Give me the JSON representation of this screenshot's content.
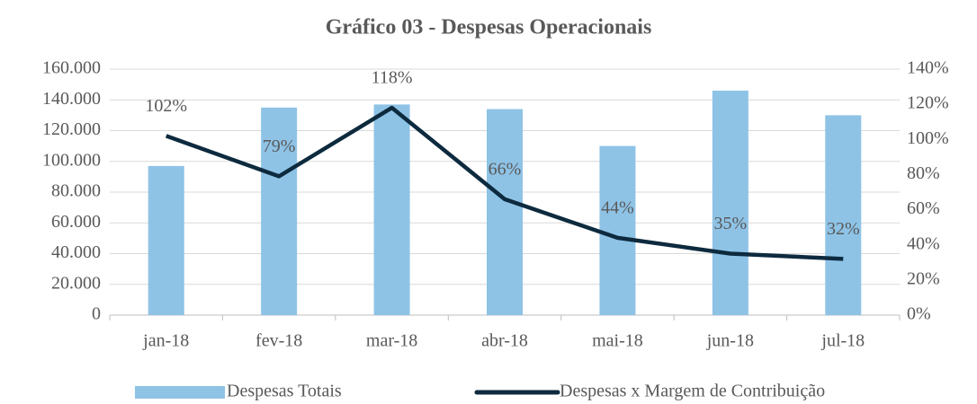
{
  "chart_data": {
    "type": "bar_line",
    "title": "Gráfico 03 - Despesas Operacionais",
    "categories": [
      "jan-18",
      "fev-18",
      "mar-18",
      "abr-18",
      "mai-18",
      "jun-18",
      "jul-18"
    ],
    "series": [
      {
        "name": "Despesas Totais",
        "type": "bar",
        "color": "#8ec3e6",
        "values": [
          97000,
          135000,
          137000,
          134000,
          110000,
          146000,
          130000
        ]
      },
      {
        "name": "Despesas x Margem de Contribuição",
        "type": "line",
        "axis": "y2",
        "color": "#0d2a3e",
        "values": [
          102,
          79,
          118,
          66,
          44,
          35,
          32
        ],
        "value_labels": [
          "102%",
          "79%",
          "118%",
          "66%",
          "44%",
          "35%",
          "32%"
        ]
      }
    ],
    "ylim": [
      0,
      160000
    ],
    "yticks": [
      0,
      {
        "value": 20000,
        "label": "20.000"
      },
      {
        "value": 40000,
        "label": "40.000"
      },
      {
        "value": 60000,
        "label": "60.000"
      },
      {
        "value": 80000,
        "label": "80.000"
      },
      {
        "value": 100000,
        "label": "100.000"
      },
      {
        "value": 120000,
        "label": "120.000"
      },
      {
        "value": 140000,
        "label": "140.000"
      },
      {
        "value": 160000,
        "label": "160.000"
      }
    ],
    "y2lim": [
      0,
      140
    ],
    "y2ticks": [
      {
        "value": 0,
        "label": "0%"
      },
      {
        "value": 20,
        "label": "20%"
      },
      {
        "value": 40,
        "label": "40%"
      },
      {
        "value": 60,
        "label": "60%"
      },
      {
        "value": 80,
        "label": "80%"
      },
      {
        "value": 100,
        "label": "100%"
      },
      {
        "value": 120,
        "label": "120%"
      },
      {
        "value": 140,
        "label": "140%"
      }
    ],
    "grid": true
  }
}
